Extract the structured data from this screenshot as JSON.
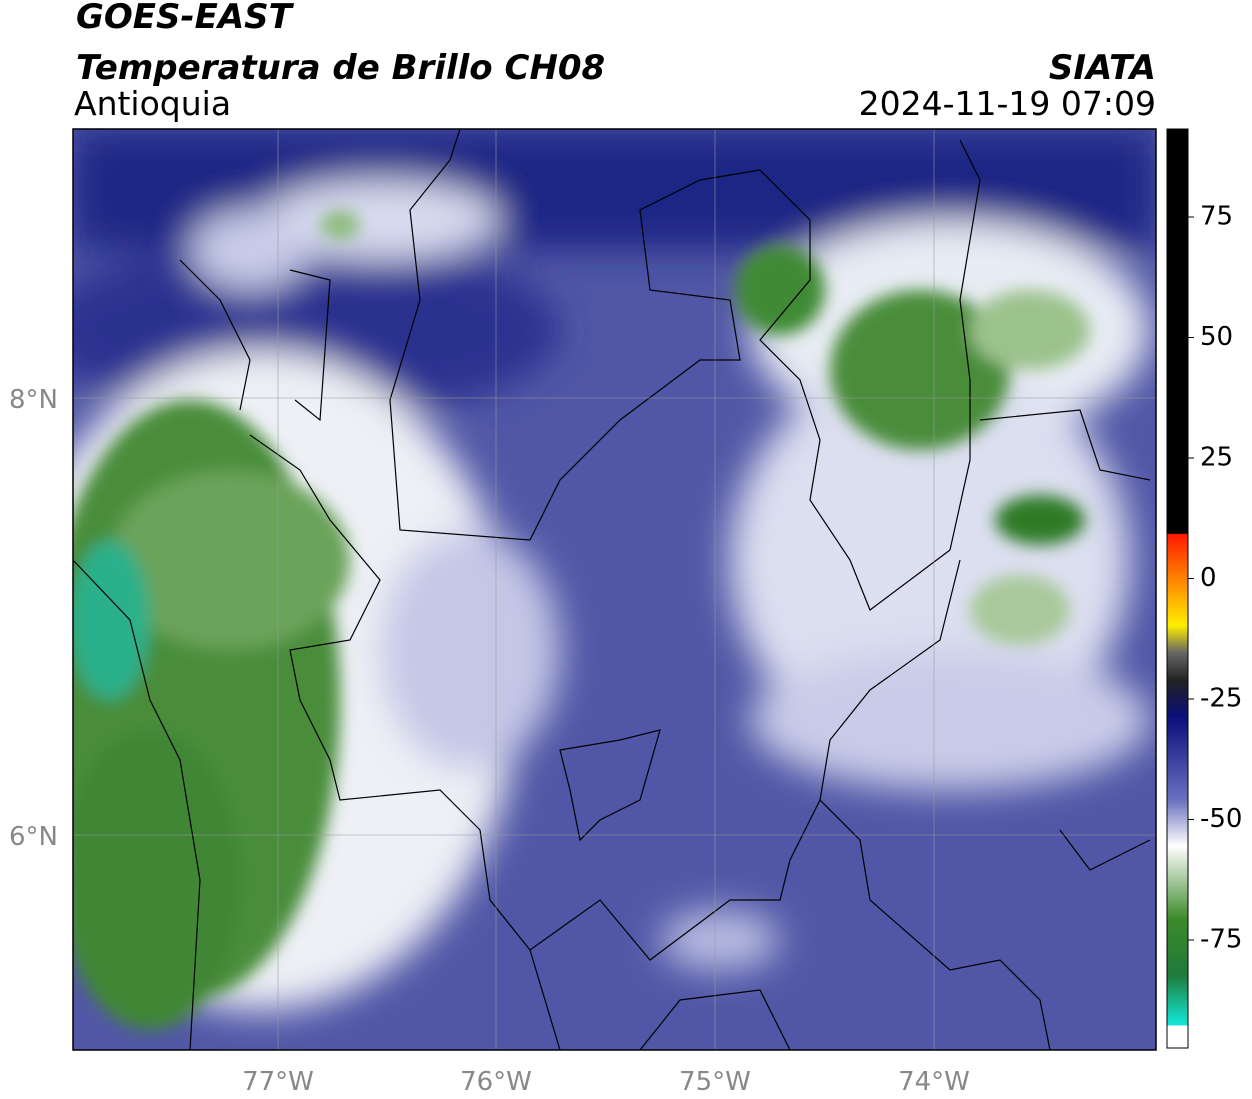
{
  "header": {
    "title": "GOES-EAST",
    "subtitle": "Temperatura de Brillo CH08",
    "region": "Antioquia",
    "source": "SIATA",
    "datetime": "2024-11-19 07:09"
  },
  "map": {
    "lat_ticks": [
      "8°N",
      "6°N"
    ],
    "lon_ticks": [
      "77°W",
      "76°W",
      "75°W",
      "74°W"
    ]
  },
  "colorbar": {
    "ticks": [
      75,
      50,
      25,
      0,
      -25,
      -50,
      -75
    ]
  }
}
